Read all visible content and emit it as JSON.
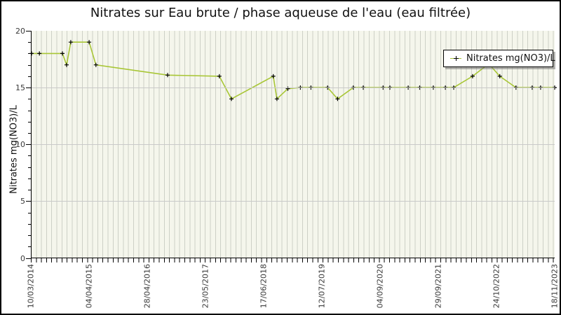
{
  "title": "Nitrates sur Eau brute / phase aqueuse de l'eau (eau filtrée)",
  "legend": {
    "label": "Nitrates mg(NO3)/L"
  },
  "colors": {
    "line": "#a8c635",
    "marker": "#000000",
    "plot_background": "#f5f6ec",
    "stripe": "#cdd0c6",
    "gridline": "#c9c9c9",
    "axis": "#000000",
    "text": "#3a3a3a"
  },
  "chart_data": {
    "type": "line",
    "title": "Nitrates sur Eau brute / phase aqueuse de l'eau (eau filtrée)",
    "xlabel": "",
    "ylabel": "Nitrates mg(NO3)/L",
    "ylim": [
      0,
      20
    ],
    "y_ticks": [
      0,
      5,
      10,
      15,
      20
    ],
    "y_minor_step": 1,
    "grid": "horizontal major gridlines + dense vertical minor stripes",
    "legend_position": "top-right inset box",
    "x_tick_labels": [
      "10/03/2014",
      "04/04/2015",
      "28/04/2016",
      "23/05/2017",
      "17/06/2018",
      "12/07/2019",
      "04/09/2020",
      "29/09/2021",
      "24/10/2022",
      "18/11/2023"
    ],
    "x_axis_note": "time axis from 10/03/2014 (left edge) to 18/11/2023 (right edge); x_frac = fractional position along axis",
    "series": [
      {
        "name": "Nitrates mg(NO3)/L",
        "marker": "black plus",
        "points": [
          {
            "x_frac": 0.0,
            "value": 18
          },
          {
            "x_frac": 0.015,
            "value": 18
          },
          {
            "x_frac": 0.059,
            "value": 18
          },
          {
            "x_frac": 0.067,
            "value": 17
          },
          {
            "x_frac": 0.075,
            "value": 19
          },
          {
            "x_frac": 0.11,
            "value": 19
          },
          {
            "x_frac": 0.123,
            "value": 17
          },
          {
            "x_frac": 0.26,
            "value": 16.1
          },
          {
            "x_frac": 0.359,
            "value": 16
          },
          {
            "x_frac": 0.382,
            "value": 14
          },
          {
            "x_frac": 0.462,
            "value": 16
          },
          {
            "x_frac": 0.469,
            "value": 14
          },
          {
            "x_frac": 0.49,
            "value": 14.9
          },
          {
            "x_frac": 0.514,
            "value": 15
          },
          {
            "x_frac": 0.534,
            "value": 15
          },
          {
            "x_frac": 0.566,
            "value": 15
          },
          {
            "x_frac": 0.585,
            "value": 14
          },
          {
            "x_frac": 0.615,
            "value": 15
          },
          {
            "x_frac": 0.634,
            "value": 15
          },
          {
            "x_frac": 0.672,
            "value": 15
          },
          {
            "x_frac": 0.685,
            "value": 15
          },
          {
            "x_frac": 0.72,
            "value": 15
          },
          {
            "x_frac": 0.742,
            "value": 15
          },
          {
            "x_frac": 0.768,
            "value": 15
          },
          {
            "x_frac": 0.791,
            "value": 15
          },
          {
            "x_frac": 0.807,
            "value": 15
          },
          {
            "x_frac": 0.843,
            "value": 16
          },
          {
            "x_frac": 0.874,
            "value": 17.1
          },
          {
            "x_frac": 0.895,
            "value": 16
          },
          {
            "x_frac": 0.926,
            "value": 15
          },
          {
            "x_frac": 0.957,
            "value": 15
          },
          {
            "x_frac": 0.973,
            "value": 15
          },
          {
            "x_frac": 1.0,
            "value": 15
          }
        ]
      }
    ]
  }
}
